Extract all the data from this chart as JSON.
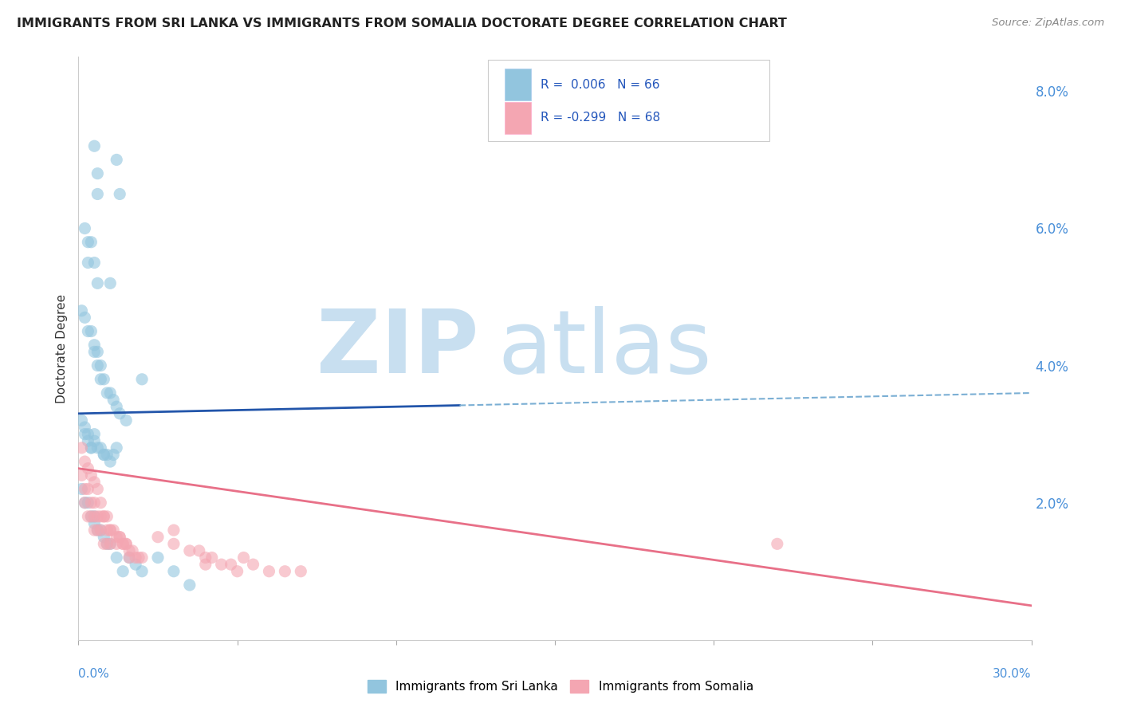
{
  "title": "IMMIGRANTS FROM SRI LANKA VS IMMIGRANTS FROM SOMALIA DOCTORATE DEGREE CORRELATION CHART",
  "source": "Source: ZipAtlas.com",
  "ylabel": "Doctorate Degree",
  "right_yticks": [
    "8.0%",
    "6.0%",
    "4.0%",
    "2.0%"
  ],
  "right_ytick_vals": [
    0.08,
    0.06,
    0.04,
    0.02
  ],
  "legend_entry1": "R =  0.006   N = 66",
  "legend_entry2": "R = -0.299   N = 68",
  "legend_label1": "Immigrants from Sri Lanka",
  "legend_label2": "Immigrants from Somalia",
  "color_sri_lanka": "#92C5DE",
  "color_somalia": "#F4A6B2",
  "line_color_sl": "#2255AA",
  "line_color_som": "#E87088",
  "watermark_zip_color": "#C8DFF0",
  "watermark_atlas_color": "#C8DFF0",
  "xmin": 0.0,
  "xmax": 0.3,
  "ymin": 0.0,
  "ymax": 0.085,
  "sl_trend_x0": 0.0,
  "sl_trend_y0": 0.033,
  "sl_trend_x1": 0.3,
  "sl_trend_y1": 0.036,
  "som_trend_x0": 0.0,
  "som_trend_y0": 0.025,
  "som_trend_x1": 0.3,
  "som_trend_y1": 0.005
}
